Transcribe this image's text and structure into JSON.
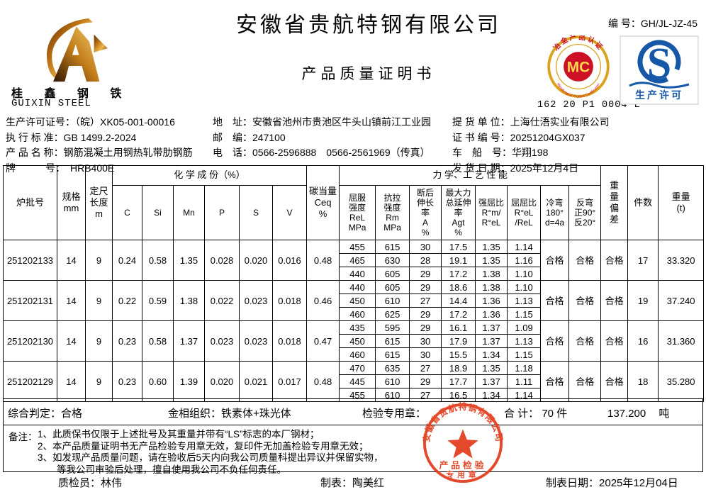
{
  "brand": {
    "logo_cn": "桂 鑫 钢 铁",
    "logo_en": "GUIXIN  STEEL"
  },
  "header": {
    "company_name": "安徽省贵航特钢有限公司",
    "doc_title": "产品质量证明书",
    "serial_label": "编 号：",
    "serial_value": "GH/JL-JZ-45"
  },
  "certs": {
    "mc_letters": "MC",
    "mc_arc_top": "冶金产品认证",
    "mc_arc_bottom": "Metallurgical Product Certification",
    "mc_code": "162 20 P1 0004 L",
    "qs_caption": "生产许可"
  },
  "info": {
    "left": [
      {
        "label": "生产许可证号：",
        "value": "（皖）XK05-001-00016"
      },
      {
        "label": "执 行 标 准：",
        "value": "GB 1499.2-2024"
      },
      {
        "label": "产 品 名 称：",
        "value": "钢筋混凝土用钢热轧带肋钢筋"
      },
      {
        "label": "牌　　　号：",
        "value": "　HRB400E"
      }
    ],
    "middle": [
      {
        "label": "地　址：",
        "value": "安徽省池州市贵池区牛头山镇前江工业园"
      },
      {
        "label": "邮　编：",
        "value": "247100"
      },
      {
        "label": "电　话：",
        "value": "0566-2596888　0566-2561969（传真）"
      }
    ],
    "right": [
      {
        "label": "提 货 单 位：",
        "value": "上海仕浯实业有限公司"
      },
      {
        "label": "证 书 编 号：",
        "value": "20251204GX037"
      },
      {
        "label": "车　船　号：",
        "value": "华翔198"
      },
      {
        "label": "发 货 日 期：",
        "value": "2025年12月4日"
      }
    ]
  },
  "table": {
    "group_headers": {
      "heat_no": "炉批号",
      "spec": "规格\nmm",
      "length": "定尺\n长度\nm",
      "chemistry": "化 学 成 份（%）",
      "ceq": "碳当量\nCeq\n%",
      "mechanical": "力 学、工 艺 性 能",
      "weight_dev": "重\n量\n偏\n差",
      "pieces": "件数",
      "weight": "重量\n(t)"
    },
    "chem_cols": [
      "C",
      "Si",
      "Mn",
      "P",
      "S",
      "V"
    ],
    "mech_cols": [
      "屈服\n强度\nReL\nMPa",
      "抗拉\n强度\nRm\nMPa",
      "断后\n伸长\n率\nA\n%",
      "最大力\n总延伸\n率\nAgt\n%",
      "强屈比\nR°m/\nR°eL",
      "屈屈比\nR°eL\n/ReL",
      "冷弯\n180°\nd=4a",
      "反弯\n正90°\n反20°"
    ],
    "batches": [
      {
        "heat_no": "251202133",
        "spec": "14",
        "length": "9",
        "C": "0.24",
        "Si": "0.58",
        "Mn": "1.35",
        "P": "0.028",
        "S": "0.020",
        "V": "0.016",
        "Ceq": "0.48",
        "mech": [
          [
            "455",
            "615",
            "30",
            "17.5",
            "1.35",
            "1.14"
          ],
          [
            "465",
            "630",
            "28",
            "19.1",
            "1.35",
            "1.16"
          ],
          [
            "440",
            "605",
            "29",
            "17.2",
            "1.38",
            "1.10"
          ]
        ],
        "cold_bend": "合格",
        "reverse_bend": "合格",
        "weight_dev": "合格",
        "pieces": "17",
        "weight": "33.320"
      },
      {
        "heat_no": "251202131",
        "spec": "14",
        "length": "9",
        "C": "0.22",
        "Si": "0.59",
        "Mn": "1.38",
        "P": "0.022",
        "S": "0.023",
        "V": "0.018",
        "Ceq": "0.46",
        "mech": [
          [
            "440",
            "605",
            "29",
            "18.6",
            "1.38",
            "1.10"
          ],
          [
            "450",
            "610",
            "27",
            "14.4",
            "1.36",
            "1.13"
          ],
          [
            "460",
            "625",
            "29",
            "17.2",
            "1.36",
            "1.15"
          ]
        ],
        "cold_bend": "合格",
        "reverse_bend": "合格",
        "weight_dev": "合格",
        "pieces": "19",
        "weight": "37.240"
      },
      {
        "heat_no": "251202130",
        "spec": "14",
        "length": "9",
        "C": "0.23",
        "Si": "0.58",
        "Mn": "1.37",
        "P": "0.023",
        "S": "0.023",
        "V": "0.018",
        "Ceq": "0.47",
        "mech": [
          [
            "435",
            "595",
            "29",
            "16.1",
            "1.37",
            "1.09"
          ],
          [
            "450",
            "615",
            "30",
            "17.9",
            "1.37",
            "1.13"
          ],
          [
            "460",
            "615",
            "30",
            "15.5",
            "1.34",
            "1.15"
          ]
        ],
        "cold_bend": "合格",
        "reverse_bend": "合格",
        "weight_dev": "合格",
        "pieces": "16",
        "weight": "31.360"
      },
      {
        "heat_no": "251202129",
        "spec": "14",
        "length": "9",
        "C": "0.23",
        "Si": "0.60",
        "Mn": "1.39",
        "P": "0.020",
        "S": "0.021",
        "V": "0.017",
        "Ceq": "0.48",
        "mech": [
          [
            "470",
            "635",
            "27",
            "18.9",
            "1.35",
            "1.18"
          ],
          [
            "445",
            "610",
            "29",
            "17.7",
            "1.37",
            "1.11"
          ],
          [
            "455",
            "610",
            "27",
            "16.5",
            "1.34",
            "1.14"
          ]
        ],
        "cold_bend": "合格",
        "reverse_bend": "合格",
        "weight_dev": "合格",
        "pieces": "18",
        "weight": "35.280"
      }
    ]
  },
  "summary": {
    "judgement_label": "综合判定：",
    "judgement": "合格",
    "structure_label": "金相组织：",
    "structure": "铁素体+珠光体",
    "stamp_label": "检验专用章：",
    "total_label": "合 计：",
    "total_pieces": "70",
    "pieces_unit": "件",
    "total_weight": "137.200",
    "weight_unit": "吨"
  },
  "notes": {
    "label": "备注：",
    "lines": [
      "1、此质保书仅限于上述批号及其重量并带有“LS”标志的本厂钢材；",
      "2、本产品质量证明书无产品检验专用章无效，复印件无加盖检验专用章无效；",
      "3、如发现产品质量问题，请在验收后5天内向我公司质量科提出异议并保留实物，",
      "　　等我公司审验后处理，擅自使用我公司不负任何责任。"
    ]
  },
  "footer": {
    "inspector_label": "质检员：",
    "inspector": "林伟",
    "tabulator_label": "制表：",
    "tabulator": "陶美红",
    "date_label": "制表日期：",
    "date": "2025年12月04日"
  },
  "stamp": {
    "arc_text": "安徽省贵航特钢有限公司",
    "line1": "产品检验",
    "line2": "专用章"
  },
  "colors": {
    "stamp_red": "#e2401f",
    "mc_red": "#cc1126",
    "mc_gold": "#d9a41b",
    "qs_blue": "#1658a7"
  }
}
